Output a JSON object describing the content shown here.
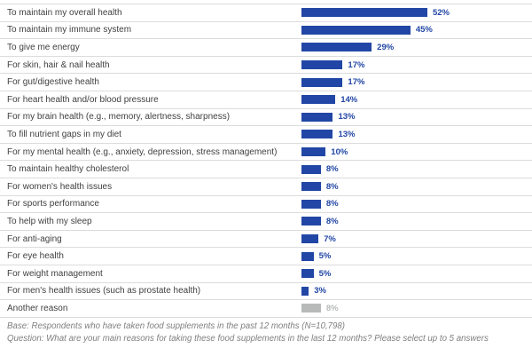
{
  "chart_data": {
    "type": "bar",
    "orientation": "horizontal",
    "title": "",
    "xlabel": "",
    "ylabel": "",
    "xlim": [
      0,
      55
    ],
    "grid": false,
    "legend": false,
    "value_suffix": "%",
    "categories": [
      "To maintain my overall health",
      "To maintain my immune system",
      "To give me energy",
      "For skin, hair & nail health",
      "For gut/digestive health",
      "For heart health and/or blood pressure",
      "For my brain health (e.g., memory, alertness, sharpness)",
      "To fill nutrient gaps in my diet",
      "For my mental health (e.g., anxiety, depression, stress management)",
      "To maintain healthy cholesterol",
      "For women's health issues",
      "For sports performance",
      "To help with my sleep",
      "For anti-aging",
      "For eye health",
      "For weight management",
      "For men's health issues (such as prostate health)",
      "Another reason"
    ],
    "values": [
      52,
      45,
      29,
      17,
      17,
      14,
      13,
      13,
      10,
      8,
      8,
      8,
      8,
      7,
      5,
      5,
      3,
      8
    ],
    "value_labels": [
      "52%",
      "45%",
      "29%",
      "17%",
      "17%",
      "14%",
      "13%",
      "13%",
      "10%",
      "8%",
      "8%",
      "8%",
      "8%",
      "7%",
      "5%",
      "5%",
      "3%",
      "8%"
    ],
    "highlight_last_as_other": true
  },
  "colors": {
    "bar_blue": "#2146a5",
    "bar_gray": "#b7bab9",
    "value_label_blue": "#2146a5",
    "value_label_gray": "#b7bab9",
    "category_text": "#3f3f3f",
    "separator": "#dcdcdc",
    "footer_text": "#7f7f7f",
    "background": "#ffffff"
  },
  "footer": {
    "base_line": "Base: Respondents who have taken food supplements in the past 12 months (N=10,798)",
    "question_line": "Question: What are your main reasons for taking these food supplements in the last 12 months? Please select up to 5 answers"
  }
}
